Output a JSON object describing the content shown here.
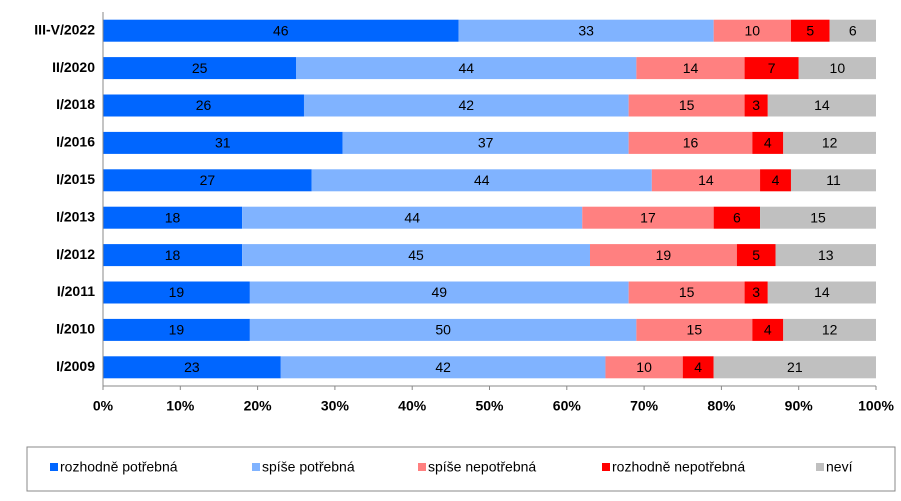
{
  "chart_data": {
    "type": "stacked_bar_horizontal",
    "categories": [
      "III-V/2022",
      "II/2020",
      "I/2018",
      "I/2016",
      "I/2015",
      "I/2013",
      "I/2012",
      "I/2011",
      "I/2010",
      "I/2009"
    ],
    "series": [
      {
        "name": "rozhodně potřebná",
        "color": "#0066ff",
        "values": [
          46,
          25,
          26,
          31,
          27,
          18,
          18,
          19,
          19,
          23
        ]
      },
      {
        "name": "spíše potřebná",
        "color": "#80b3ff",
        "values": [
          33,
          44,
          42,
          37,
          44,
          44,
          45,
          49,
          50,
          42
        ]
      },
      {
        "name": "spíše nepotřebná",
        "color": "#ff8080",
        "values": [
          10,
          14,
          15,
          16,
          14,
          17,
          19,
          15,
          15,
          10
        ]
      },
      {
        "name": "rozhodně nepotřebná",
        "color": "#ff0000",
        "values": [
          5,
          7,
          3,
          4,
          4,
          6,
          5,
          3,
          4,
          4
        ]
      },
      {
        "name": "neví",
        "color": "#c0c0c0",
        "values": [
          6,
          10,
          14,
          12,
          11,
          15,
          13,
          14,
          12,
          21
        ]
      }
    ],
    "xlim": [
      0,
      100
    ],
    "xticks": [
      {
        "value": 0,
        "label": "0%"
      },
      {
        "value": 10,
        "label": "10%"
      },
      {
        "value": 20,
        "label": "20%"
      },
      {
        "value": 30,
        "label": "30%"
      },
      {
        "value": 40,
        "label": "40%"
      },
      {
        "value": 50,
        "label": "50%"
      },
      {
        "value": 60,
        "label": "60%"
      },
      {
        "value": 70,
        "label": "70%"
      },
      {
        "value": 80,
        "label": "80%"
      },
      {
        "value": 90,
        "label": "90%"
      },
      {
        "value": 100,
        "label": "100%"
      }
    ],
    "legend": "bottom"
  }
}
